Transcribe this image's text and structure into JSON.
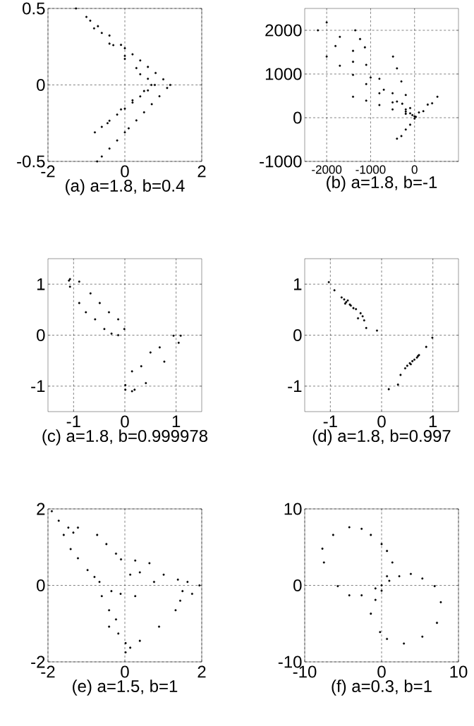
{
  "chart_data": [
    {
      "type": "scatter",
      "xlabel": "(a) a=1.8, b=0.4",
      "color": "#000000",
      "grid": true,
      "xlim": [
        -2,
        2
      ],
      "ylim": [
        -0.5,
        0.5
      ],
      "xticks": [
        -2,
        0,
        2
      ],
      "yticks": [
        -0.5,
        0,
        0.5
      ],
      "x": [
        -1.27,
        -1.0,
        -0.7,
        -0.4,
        -0.1,
        0.0,
        0.2,
        0.4,
        0.6,
        0.8,
        1.0,
        1.18,
        -0.9,
        -0.6,
        -0.3,
        0.0,
        0.3,
        0.6,
        0.78,
        -0.8,
        -0.4,
        0.0,
        0.4,
        0.69,
        1.1,
        0.9,
        0.7,
        0.5,
        0.3,
        0.1,
        0.0,
        -0.2,
        -0.4,
        -0.6,
        -0.72,
        0.6,
        0.4,
        0.2,
        0.0,
        -0.2,
        -0.4,
        -0.6,
        -0.78,
        0.5,
        0.2,
        -0.1,
        -0.45
      ],
      "values": [
        0.5,
        0.445,
        0.384,
        0.323,
        0.262,
        0.24,
        0.2,
        0.16,
        0.118,
        0.078,
        0.037,
        0.0,
        0.42,
        0.34,
        0.26,
        0.19,
        0.11,
        0.04,
        0.0,
        0.37,
        0.27,
        0.17,
        0.07,
        0.0,
        -0.02,
        -0.074,
        -0.126,
        -0.179,
        -0.232,
        -0.284,
        -0.31,
        -0.363,
        -0.416,
        -0.468,
        -0.5,
        -0.036,
        -0.075,
        -0.115,
        -0.155,
        -0.194,
        -0.234,
        -0.274,
        -0.31,
        -0.04,
        -0.1,
        -0.16,
        -0.25
      ]
    },
    {
      "type": "scatter",
      "xlabel": "(b) a=1.8, b=-1",
      "color": "#000000",
      "grid": true,
      "xlim": [
        -2500,
        1000
      ],
      "ylim": [
        -1000,
        2500
      ],
      "xticks": [
        -2000,
        -1000,
        0
      ],
      "yticks": [
        -1000,
        0,
        1000,
        2000
      ],
      "x": [
        -2200,
        -1800,
        -1400,
        -1000,
        -700,
        -400,
        -200,
        -2000,
        -1700,
        -1400,
        -1100,
        -800,
        -500,
        -280,
        -1350,
        -1240,
        -1130,
        -2000,
        -1700,
        -1400,
        -1100,
        -800,
        -500,
        -200,
        -1400,
        -1100,
        -800,
        -500,
        -200,
        -490,
        -400,
        -300,
        -200,
        -100,
        -400,
        -200,
        0,
        200,
        400,
        520,
        300,
        100,
        -100,
        -300,
        0,
        -50,
        -100,
        30
      ],
      "values": [
        2000,
        1640,
        1280,
        920,
        640,
        370,
        190,
        2180,
        1850,
        1530,
        1210,
        890,
        560,
        320,
        2000,
        1800,
        1610,
        1400,
        1190,
        980,
        770,
        560,
        350,
        140,
        480,
        390,
        290,
        190,
        90,
        1400,
        1130,
        830,
        520,
        220,
        -480,
        -270,
        -20,
        150,
        330,
        480,
        300,
        120,
        -160,
        -420,
        30,
        60,
        100,
        20
      ]
    },
    {
      "type": "scatter",
      "xlabel": "(c) a=1.8, b=0.999978",
      "color": "#000000",
      "grid": true,
      "xlim": [
        -1.5,
        1.5
      ],
      "ylim": [
        -1.5,
        1.5
      ],
      "xticks": [
        -1,
        0,
        1
      ],
      "yticks": [
        -1,
        0,
        1
      ],
      "x": [
        -1.07,
        -0.89,
        -0.67,
        -0.49,
        -0.31,
        -0.13,
        -0.01,
        -0.13,
        -0.26,
        -0.4,
        -0.58,
        -0.76,
        -0.89,
        -1.07,
        -1.09,
        0.01,
        0.14,
        0.01,
        0.14,
        0.32,
        0.5,
        0.68,
        0.95,
        1.09,
        1.05,
        0.77,
        0.41,
        0.19
      ],
      "values": [
        1.1,
        1.05,
        0.82,
        0.63,
        0.45,
        0.31,
        0.12,
        0.0,
        0.03,
        0.12,
        0.31,
        0.45,
        0.63,
        0.95,
        1.07,
        -0.98,
        -1.1,
        -1.07,
        -0.71,
        -0.61,
        -0.34,
        -0.24,
        -0.01,
        -0.01,
        -0.15,
        -0.52,
        -0.94,
        -1.07
      ]
    },
    {
      "type": "scatter",
      "xlabel": "(d) a=1.8, b=0.997",
      "color": "#000000",
      "grid": true,
      "xlim": [
        -1.5,
        1.5
      ],
      "ylim": [
        -1.5,
        1.5
      ],
      "xticks": [
        -1,
        0,
        1
      ],
      "yticks": [
        -1,
        0,
        1
      ],
      "x": [
        -1.03,
        -0.92,
        -0.78,
        -0.69,
        -0.6,
        -0.5,
        -0.37,
        -0.3,
        -0.09,
        -0.71,
        -0.62,
        -0.55,
        -0.66,
        -0.41,
        -0.34,
        -0.46,
        -0.73,
        0.14,
        0.37,
        0.46,
        0.55,
        0.64,
        0.73,
        0.87,
        0.99,
        0.32,
        0.5,
        0.6,
        0.69,
        0.57,
        0.71
      ],
      "values": [
        1.04,
        0.88,
        0.74,
        0.65,
        0.58,
        0.51,
        0.37,
        0.14,
        0.09,
        0.62,
        0.6,
        0.53,
        0.68,
        0.43,
        0.29,
        0.33,
        0.7,
        -1.06,
        -0.78,
        -0.65,
        -0.55,
        -0.48,
        -0.39,
        -0.23,
        -0.05,
        -0.97,
        -0.6,
        -0.51,
        -0.44,
        -0.57,
        -0.41
      ]
    },
    {
      "type": "scatter",
      "xlabel": "(e) a=1.5, b=1",
      "color": "#000000",
      "grid": true,
      "xlim": [
        -2,
        2
      ],
      "ylim": [
        -2,
        2
      ],
      "xticks": [
        -2,
        0,
        2
      ],
      "yticks": [
        -2,
        0,
        2
      ],
      "x": [
        -1.9,
        -1.72,
        -1.47,
        -1.22,
        -1.59,
        -1.34,
        -0.72,
        -0.48,
        -0.23,
        -0.1,
        -1.41,
        -1.22,
        -0.97,
        -0.79,
        -0.66,
        0.27,
        0.64,
        0.39,
        1.01,
        1.38,
        1.63,
        1.5,
        1.75,
        0.14,
        0.76,
        1.94,
        -0.35,
        -0.11,
        0.27,
        -0.6,
        -0.41,
        -0.23,
        -0.41,
        -0.17,
        0.02,
        0.14,
        0.02,
        0.39,
        0.89,
        1.32,
        1.44
      ],
      "values": [
        1.94,
        1.69,
        1.51,
        1.51,
        1.32,
        1.38,
        1.32,
        1.08,
        0.83,
        0.68,
        0.95,
        0.71,
        0.4,
        0.22,
        0.09,
        0.65,
        0.58,
        0.34,
        0.28,
        0.15,
        0.09,
        -0.15,
        -0.22,
        0.28,
        0.09,
        0.0,
        -0.15,
        -0.22,
        -0.28,
        -0.28,
        -0.65,
        -0.89,
        -1.08,
        -1.26,
        -1.51,
        -1.63,
        -1.75,
        -1.45,
        -1.08,
        -0.65,
        -0.4
      ]
    },
    {
      "type": "scatter",
      "xlabel": "(f) a=0.3, b=1",
      "color": "#000000",
      "grid": true,
      "xlim": [
        -10,
        10
      ],
      "ylim": [
        -10,
        10
      ],
      "xticks": [
        -10,
        0,
        10
      ],
      "yticks": [
        -10,
        0,
        10
      ],
      "x": [
        -4.2,
        -6.3,
        -7.7,
        -7.5,
        -5.7,
        -4.2,
        -2.6,
        -0.8,
        0.0,
        0.7,
        1.4,
        0.7,
        0.0,
        -1.4,
        -2.6,
        1.0,
        2.3,
        3.8,
        5.3,
        6.9,
        7.7,
        7.2,
        5.3,
        2.9,
        0.7,
        -0.2,
        -1.4,
        -0.8,
        0.0
      ],
      "values": [
        7.6,
        6.6,
        4.8,
        3.0,
        -0.1,
        -1.3,
        -1.3,
        -0.4,
        0.0,
        1.2,
        3.0,
        4.5,
        5.4,
        6.6,
        7.4,
        0.6,
        1.2,
        1.5,
        0.9,
        -0.1,
        -2.2,
        -4.9,
        -6.7,
        -7.6,
        -7.0,
        -6.1,
        -3.7,
        -1.9,
        -0.7
      ]
    }
  ]
}
